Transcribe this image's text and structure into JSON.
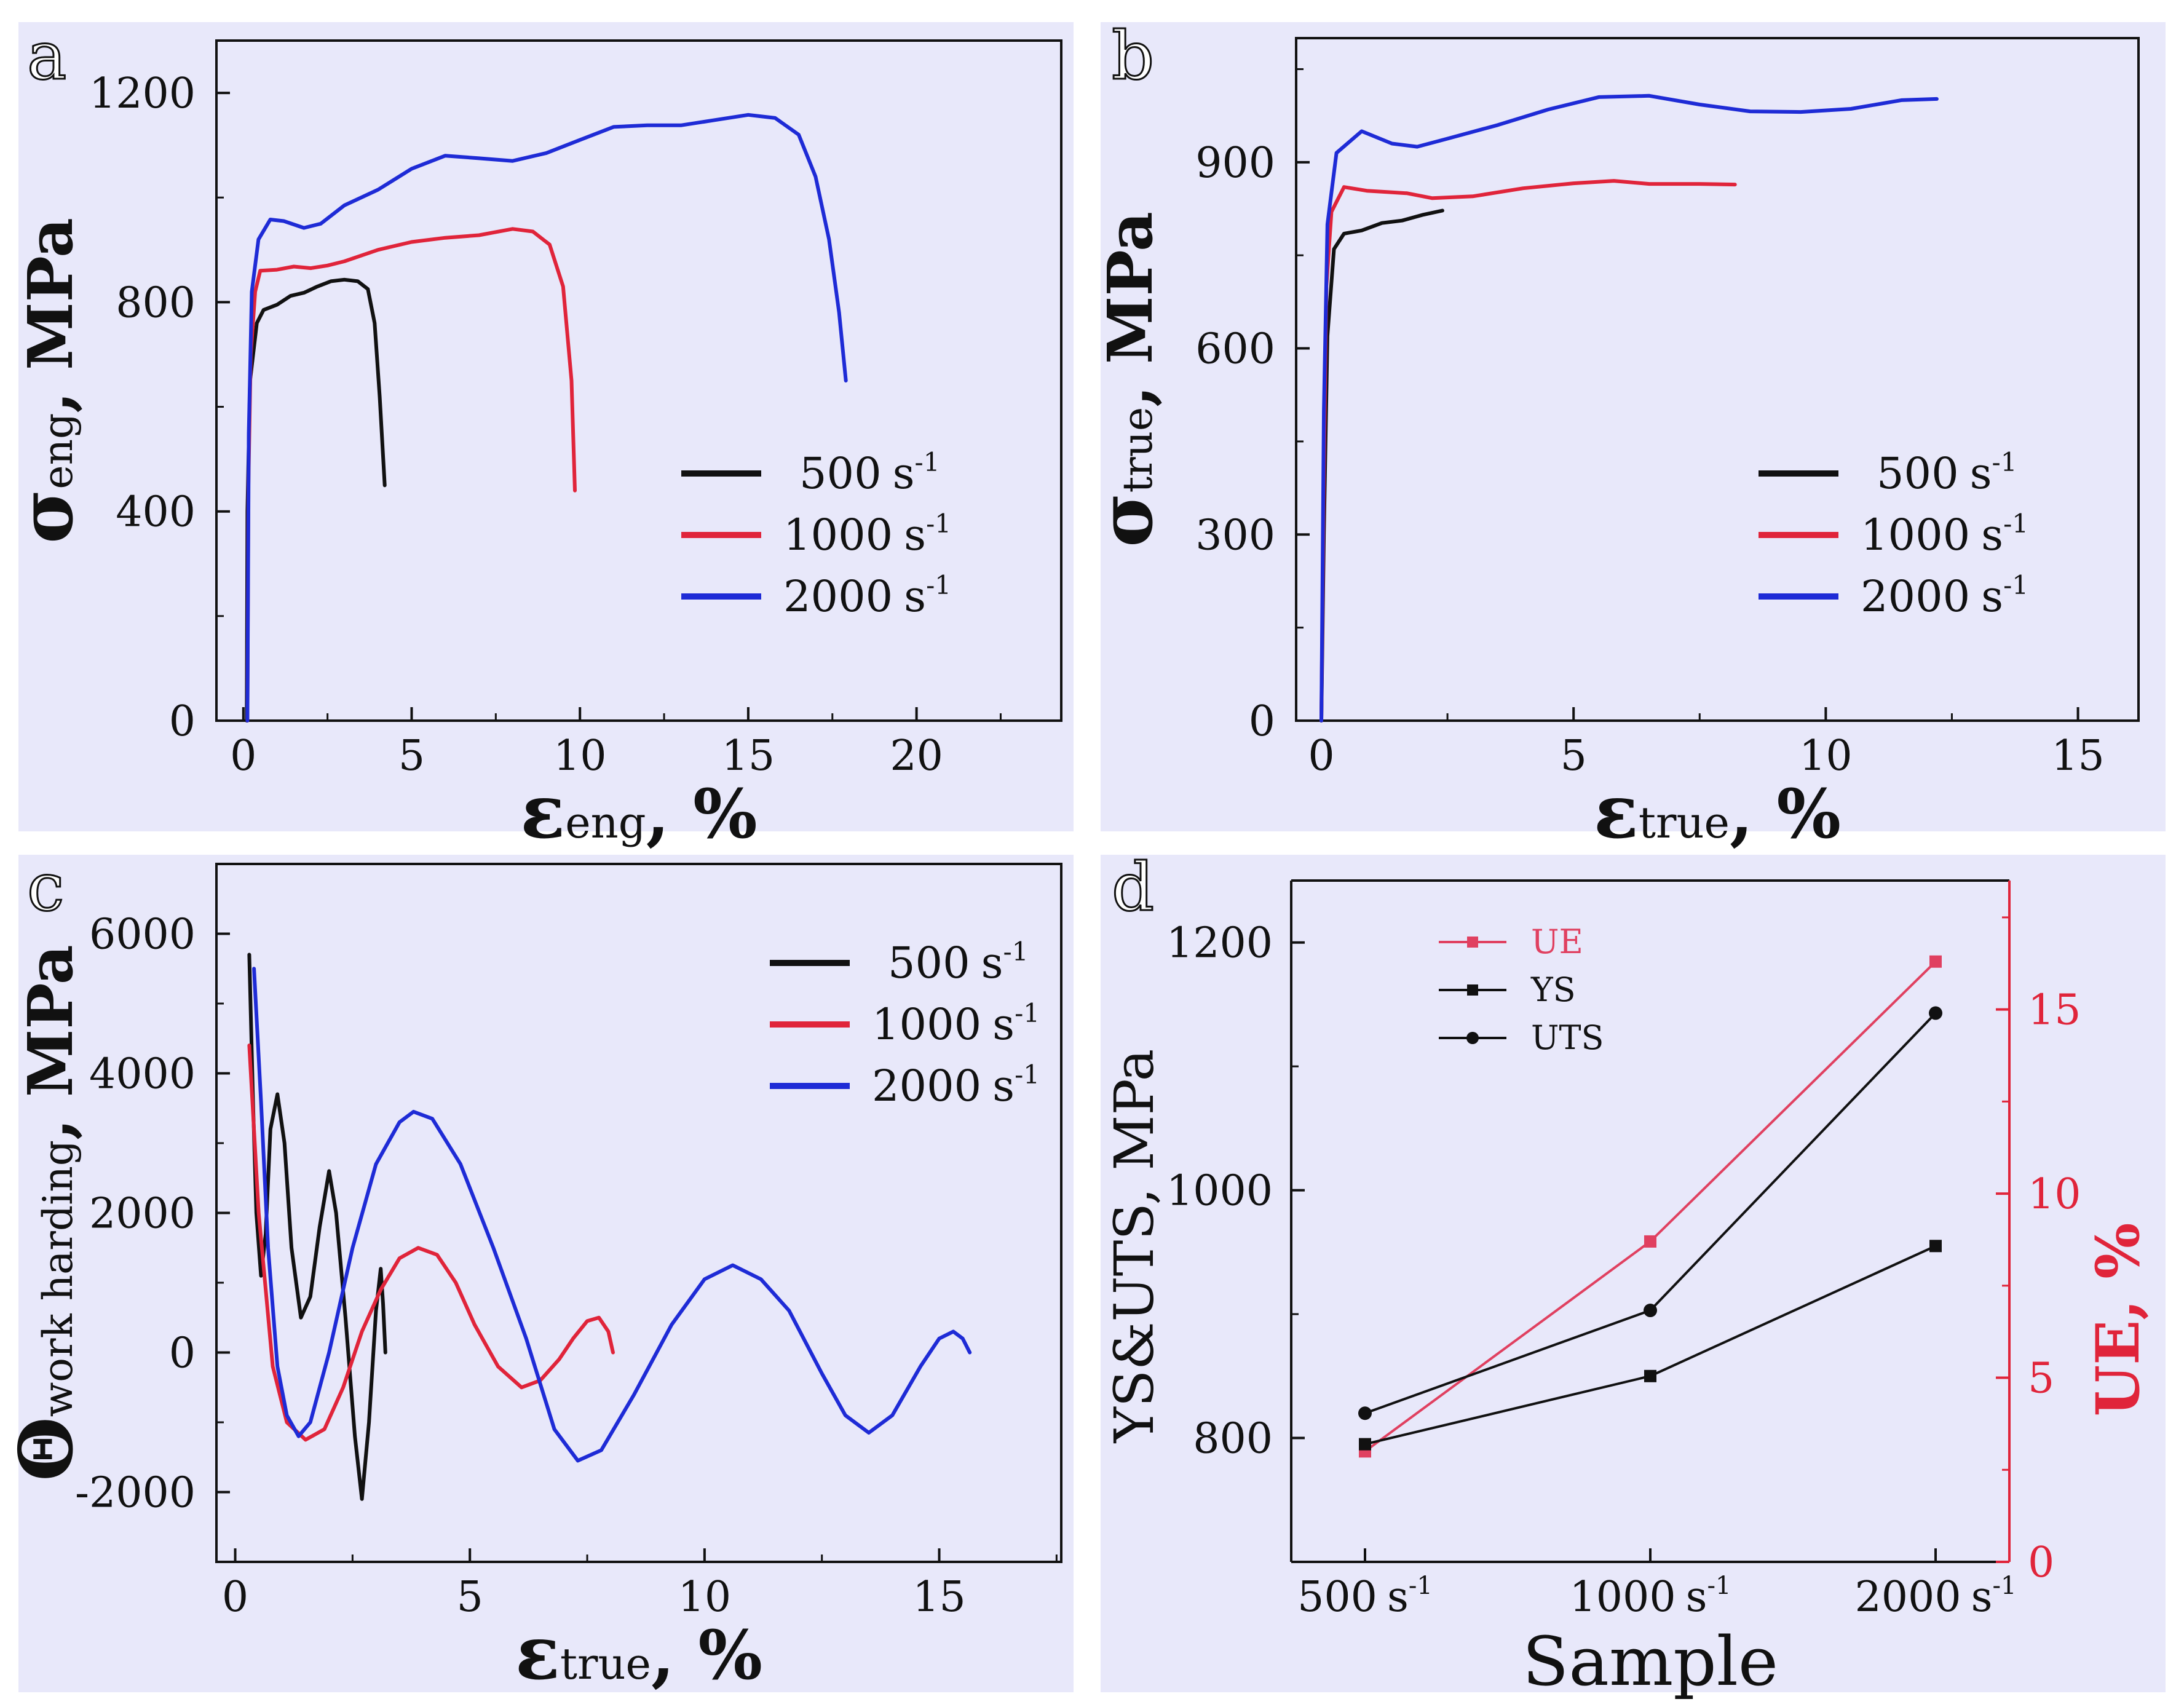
{
  "colors": {
    "background": "#E8E8FA",
    "black": "#111111",
    "red": "#E0243A",
    "blue": "#1E2BD6",
    "ue": "#E04060"
  },
  "chart_data": [
    {
      "panel": "a",
      "type": "line",
      "xlabel_main": "ε",
      "xlabel_sub": "eng",
      "xlabel_rest": ", %",
      "ylabel_main": "σ",
      "ylabel_sub": "eng",
      "ylabel_rest": ", MPa",
      "xlim": [
        -0.8,
        24.3
      ],
      "ylim": [
        0,
        1300
      ],
      "xticks": [
        0,
        5,
        10,
        15,
        20
      ],
      "yticks": [
        0,
        400,
        800,
        1200
      ],
      "legend": {
        "position": "center-right",
        "unit": "s",
        "exp": "-1"
      },
      "series": [
        {
          "name": "500",
          "color": "black",
          "points": [
            [
              0.1,
              0
            ],
            [
              0.12,
              400
            ],
            [
              0.2,
              650
            ],
            [
              0.4,
              760
            ],
            [
              0.6,
              785
            ],
            [
              1,
              795
            ],
            [
              1.4,
              812
            ],
            [
              1.8,
              818
            ],
            [
              2.2,
              830
            ],
            [
              2.6,
              840
            ],
            [
              3,
              843
            ],
            [
              3.4,
              840
            ],
            [
              3.7,
              825
            ],
            [
              3.9,
              760
            ],
            [
              4.05,
              620
            ],
            [
              4.2,
              450
            ]
          ]
        },
        {
          "name": "1000",
          "color": "red",
          "points": [
            [
              0.12,
              0
            ],
            [
              0.15,
              450
            ],
            [
              0.22,
              700
            ],
            [
              0.35,
              820
            ],
            [
              0.5,
              860
            ],
            [
              1,
              862
            ],
            [
              1.5,
              868
            ],
            [
              2,
              865
            ],
            [
              2.5,
              870
            ],
            [
              3,
              878
            ],
            [
              4,
              900
            ],
            [
              5,
              915
            ],
            [
              6,
              923
            ],
            [
              7,
              928
            ],
            [
              8,
              940
            ],
            [
              8.6,
              935
            ],
            [
              9.1,
              910
            ],
            [
              9.5,
              830
            ],
            [
              9.75,
              650
            ],
            [
              9.85,
              440
            ]
          ]
        },
        {
          "name": "2000",
          "color": "blue",
          "points": [
            [
              0.12,
              0
            ],
            [
              0.16,
              550
            ],
            [
              0.25,
              820
            ],
            [
              0.45,
              920
            ],
            [
              0.8,
              958
            ],
            [
              1.2,
              955
            ],
            [
              1.8,
              942
            ],
            [
              2.3,
              950
            ],
            [
              3,
              985
            ],
            [
              4,
              1015
            ],
            [
              5,
              1055
            ],
            [
              6,
              1080
            ],
            [
              7,
              1075
            ],
            [
              8,
              1070
            ],
            [
              9,
              1085
            ],
            [
              10,
              1110
            ],
            [
              11,
              1135
            ],
            [
              12,
              1138
            ],
            [
              13,
              1138
            ],
            [
              14,
              1148
            ],
            [
              15,
              1158
            ],
            [
              15.8,
              1152
            ],
            [
              16.5,
              1120
            ],
            [
              17,
              1040
            ],
            [
              17.4,
              920
            ],
            [
              17.7,
              780
            ],
            [
              17.9,
              650
            ]
          ]
        }
      ]
    },
    {
      "panel": "b",
      "type": "line",
      "xlabel_main": "ε",
      "xlabel_sub": "true",
      "xlabel_rest": ", %",
      "ylabel_main": "σ",
      "ylabel_sub": "true",
      "ylabel_rest": ", MPa",
      "xlim": [
        -0.5,
        16.2
      ],
      "ylim": [
        0,
        1100
      ],
      "xticks": [
        0,
        5,
        10,
        15
      ],
      "yticks": [
        0,
        300,
        600,
        900
      ],
      "legend": {
        "position": "center-right",
        "unit": "s",
        "exp": "-1"
      },
      "series": [
        {
          "name": "500",
          "color": "black",
          "points": [
            [
              0,
              0
            ],
            [
              0.05,
              300
            ],
            [
              0.12,
              620
            ],
            [
              0.25,
              760
            ],
            [
              0.45,
              785
            ],
            [
              0.8,
              790
            ],
            [
              1.2,
              802
            ],
            [
              1.6,
              806
            ],
            [
              2,
              815
            ],
            [
              2.4,
              822
            ]
          ]
        },
        {
          "name": "1000",
          "color": "red",
          "points": [
            [
              0,
              0
            ],
            [
              0.05,
              400
            ],
            [
              0.1,
              700
            ],
            [
              0.2,
              820
            ],
            [
              0.45,
              860
            ],
            [
              0.9,
              854
            ],
            [
              1.3,
              852
            ],
            [
              1.7,
              850
            ],
            [
              2.2,
              842
            ],
            [
              3,
              845
            ],
            [
              4,
              858
            ],
            [
              5,
              866
            ],
            [
              5.8,
              870
            ],
            [
              6.5,
              865
            ],
            [
              7.5,
              865
            ],
            [
              8.2,
              864
            ]
          ]
        },
        {
          "name": "2000",
          "color": "blue",
          "points": [
            [
              0,
              0
            ],
            [
              0.05,
              500
            ],
            [
              0.12,
              800
            ],
            [
              0.3,
              915
            ],
            [
              0.8,
              950
            ],
            [
              1.4,
              930
            ],
            [
              1.9,
              925
            ],
            [
              2.5,
              938
            ],
            [
              3.5,
              960
            ],
            [
              4.5,
              985
            ],
            [
              5.5,
              1005
            ],
            [
              6.5,
              1007
            ],
            [
              7.5,
              993
            ],
            [
              8.5,
              982
            ],
            [
              9.5,
              981
            ],
            [
              10.5,
              986
            ],
            [
              11.5,
              1000
            ],
            [
              12.2,
              1002
            ]
          ]
        }
      ]
    },
    {
      "panel": "c",
      "type": "line",
      "xlabel_main": "ε",
      "xlabel_sub": "true",
      "xlabel_rest": ", %",
      "ylabel_main": "Θ",
      "ylabel_sub": "work harding",
      "ylabel_rest": ", MPa",
      "xlim": [
        -0.4,
        17.6
      ],
      "ylim": [
        -3000,
        7000
      ],
      "xticks": [
        0,
        5,
        10,
        15
      ],
      "yticks": [
        -2000,
        0,
        2000,
        4000,
        6000
      ],
      "legend": {
        "position": "top-right",
        "unit": "s",
        "exp": "-1"
      },
      "series": [
        {
          "name": "500",
          "color": "black",
          "points": [
            [
              0.3,
              5700
            ],
            [
              0.38,
              3600
            ],
            [
              0.45,
              2000
            ],
            [
              0.55,
              1100
            ],
            [
              0.65,
              1700
            ],
            [
              0.75,
              3200
            ],
            [
              0.9,
              3700
            ],
            [
              1.05,
              3000
            ],
            [
              1.2,
              1500
            ],
            [
              1.4,
              500
            ],
            [
              1.6,
              800
            ],
            [
              1.8,
              1800
            ],
            [
              2.0,
              2600
            ],
            [
              2.15,
              2000
            ],
            [
              2.35,
              500
            ],
            [
              2.55,
              -1200
            ],
            [
              2.7,
              -2100
            ],
            [
              2.85,
              -1000
            ],
            [
              3.0,
              600
            ],
            [
              3.1,
              1200
            ],
            [
              3.15,
              700
            ],
            [
              3.2,
              0
            ]
          ]
        },
        {
          "name": "1000",
          "color": "red",
          "points": [
            [
              0.3,
              4400
            ],
            [
              0.5,
              2000
            ],
            [
              0.8,
              -200
            ],
            [
              1.1,
              -1000
            ],
            [
              1.5,
              -1250
            ],
            [
              1.9,
              -1100
            ],
            [
              2.3,
              -500
            ],
            [
              2.7,
              300
            ],
            [
              3.1,
              900
            ],
            [
              3.5,
              1350
            ],
            [
              3.9,
              1500
            ],
            [
              4.3,
              1400
            ],
            [
              4.7,
              1000
            ],
            [
              5.1,
              400
            ],
            [
              5.6,
              -200
            ],
            [
              6.1,
              -500
            ],
            [
              6.5,
              -400
            ],
            [
              6.9,
              -100
            ],
            [
              7.2,
              200
            ],
            [
              7.5,
              450
            ],
            [
              7.75,
              500
            ],
            [
              7.95,
              300
            ],
            [
              8.05,
              0
            ]
          ]
        },
        {
          "name": "2000",
          "color": "blue",
          "points": [
            [
              0.4,
              5500
            ],
            [
              0.55,
              3600
            ],
            [
              0.7,
              1500
            ],
            [
              0.9,
              -200
            ],
            [
              1.1,
              -900
            ],
            [
              1.35,
              -1200
            ],
            [
              1.6,
              -1000
            ],
            [
              2.0,
              0
            ],
            [
              2.5,
              1500
            ],
            [
              3.0,
              2700
            ],
            [
              3.5,
              3300
            ],
            [
              3.8,
              3450
            ],
            [
              4.2,
              3350
            ],
            [
              4.8,
              2700
            ],
            [
              5.5,
              1500
            ],
            [
              6.2,
              200
            ],
            [
              6.8,
              -1100
            ],
            [
              7.3,
              -1550
            ],
            [
              7.8,
              -1400
            ],
            [
              8.5,
              -600
            ],
            [
              9.3,
              400
            ],
            [
              10.0,
              1050
            ],
            [
              10.6,
              1250
            ],
            [
              11.2,
              1050
            ],
            [
              11.8,
              600
            ],
            [
              12.5,
              -300
            ],
            [
              13.0,
              -900
            ],
            [
              13.5,
              -1150
            ],
            [
              14.0,
              -900
            ],
            [
              14.6,
              -200
            ],
            [
              15.0,
              200
            ],
            [
              15.3,
              300
            ],
            [
              15.5,
              200
            ],
            [
              15.65,
              0
            ]
          ]
        }
      ]
    },
    {
      "panel": "d",
      "type": "line",
      "xlabel": "Sample",
      "ylabel_left": "YS&UTS, MPa",
      "ylabel_right": "UE, %",
      "categories": [
        "500",
        "1000",
        "2000"
      ],
      "category_unit": "s",
      "category_exp": "-1",
      "ylim_left": [
        700,
        1250
      ],
      "yticks_left": [
        800,
        1000,
        1200
      ],
      "ylim_right": [
        0,
        18.5
      ],
      "yticks_right": [
        0,
        5,
        10,
        15
      ],
      "legend": {
        "position": "top-left"
      },
      "series": [
        {
          "name": "UE",
          "axis": "right",
          "color": "ue",
          "marker": "square",
          "values": [
            3.0,
            8.7,
            16.3
          ]
        },
        {
          "name": "YS",
          "axis": "left",
          "color": "black",
          "marker": "square",
          "values": [
            795,
            850,
            955
          ]
        },
        {
          "name": "UTS",
          "axis": "left",
          "color": "black",
          "marker": "circle",
          "values": [
            820,
            903,
            1143
          ]
        }
      ]
    }
  ],
  "panel_labels": [
    "a",
    "b",
    "c",
    "d"
  ]
}
